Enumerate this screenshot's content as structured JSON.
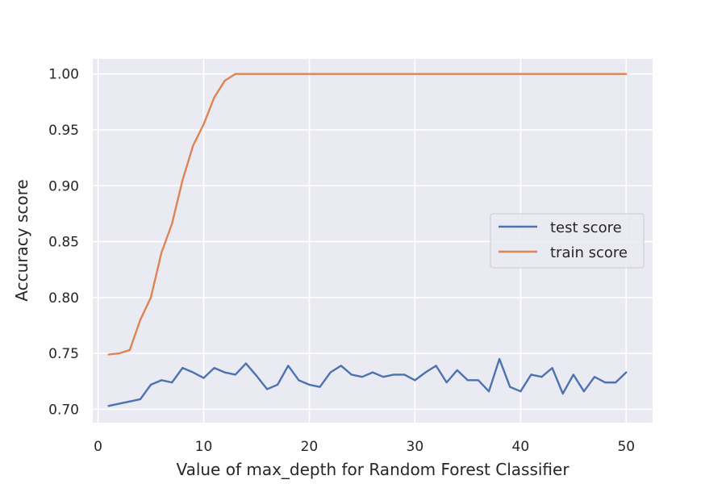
{
  "chart_data": {
    "type": "line",
    "title": "",
    "xlabel": "Value of max_depth for Random Forest Classifier",
    "ylabel": "Accuracy score",
    "xlim": [
      -0.5,
      52.5
    ],
    "ylim": [
      0.688,
      1.0135
    ],
    "xticks": [
      0,
      10,
      20,
      30,
      40,
      50
    ],
    "yticks": [
      0.7,
      0.75,
      0.8,
      0.85,
      0.9,
      0.95,
      1.0
    ],
    "xtick_labels": [
      "0",
      "10",
      "20",
      "30",
      "40",
      "50"
    ],
    "ytick_labels": [
      "0.70",
      "0.75",
      "0.80",
      "0.85",
      "0.90",
      "0.95",
      "1.00"
    ],
    "grid": true,
    "background": "#eaeaf2",
    "legend_position": "center-right",
    "x": [
      1,
      2,
      3,
      4,
      5,
      6,
      7,
      8,
      9,
      10,
      11,
      12,
      13,
      14,
      15,
      16,
      17,
      18,
      19,
      20,
      21,
      22,
      23,
      24,
      25,
      26,
      27,
      28,
      29,
      30,
      31,
      32,
      33,
      34,
      35,
      36,
      37,
      38,
      39,
      40,
      41,
      42,
      43,
      44,
      45,
      46,
      47,
      48,
      49,
      50
    ],
    "series": [
      {
        "name": "test score",
        "color": "#4c72b0",
        "values": [
          0.703,
          0.705,
          0.707,
          0.709,
          0.722,
          0.726,
          0.724,
          0.737,
          0.733,
          0.728,
          0.737,
          0.733,
          0.731,
          0.741,
          0.73,
          0.718,
          0.722,
          0.739,
          0.726,
          0.722,
          0.72,
          0.733,
          0.739,
          0.731,
          0.729,
          0.733,
          0.729,
          0.731,
          0.731,
          0.726,
          0.733,
          0.739,
          0.724,
          0.735,
          0.726,
          0.726,
          0.716,
          0.745,
          0.72,
          0.716,
          0.731,
          0.729,
          0.737,
          0.714,
          0.731,
          0.716,
          0.729,
          0.724,
          0.724,
          0.733
        ]
      },
      {
        "name": "train score",
        "color": "#dd8452",
        "values": [
          0.749,
          0.75,
          0.753,
          0.78,
          0.8,
          0.84,
          0.866,
          0.905,
          0.936,
          0.955,
          0.979,
          0.994,
          1.0,
          1.0,
          1.0,
          1.0,
          1.0,
          1.0,
          1.0,
          1.0,
          1.0,
          1.0,
          1.0,
          1.0,
          1.0,
          1.0,
          1.0,
          1.0,
          1.0,
          1.0,
          1.0,
          1.0,
          1.0,
          1.0,
          1.0,
          1.0,
          1.0,
          1.0,
          1.0,
          1.0,
          1.0,
          1.0,
          1.0,
          1.0,
          1.0,
          1.0,
          1.0,
          1.0,
          1.0,
          1.0
        ]
      }
    ]
  }
}
